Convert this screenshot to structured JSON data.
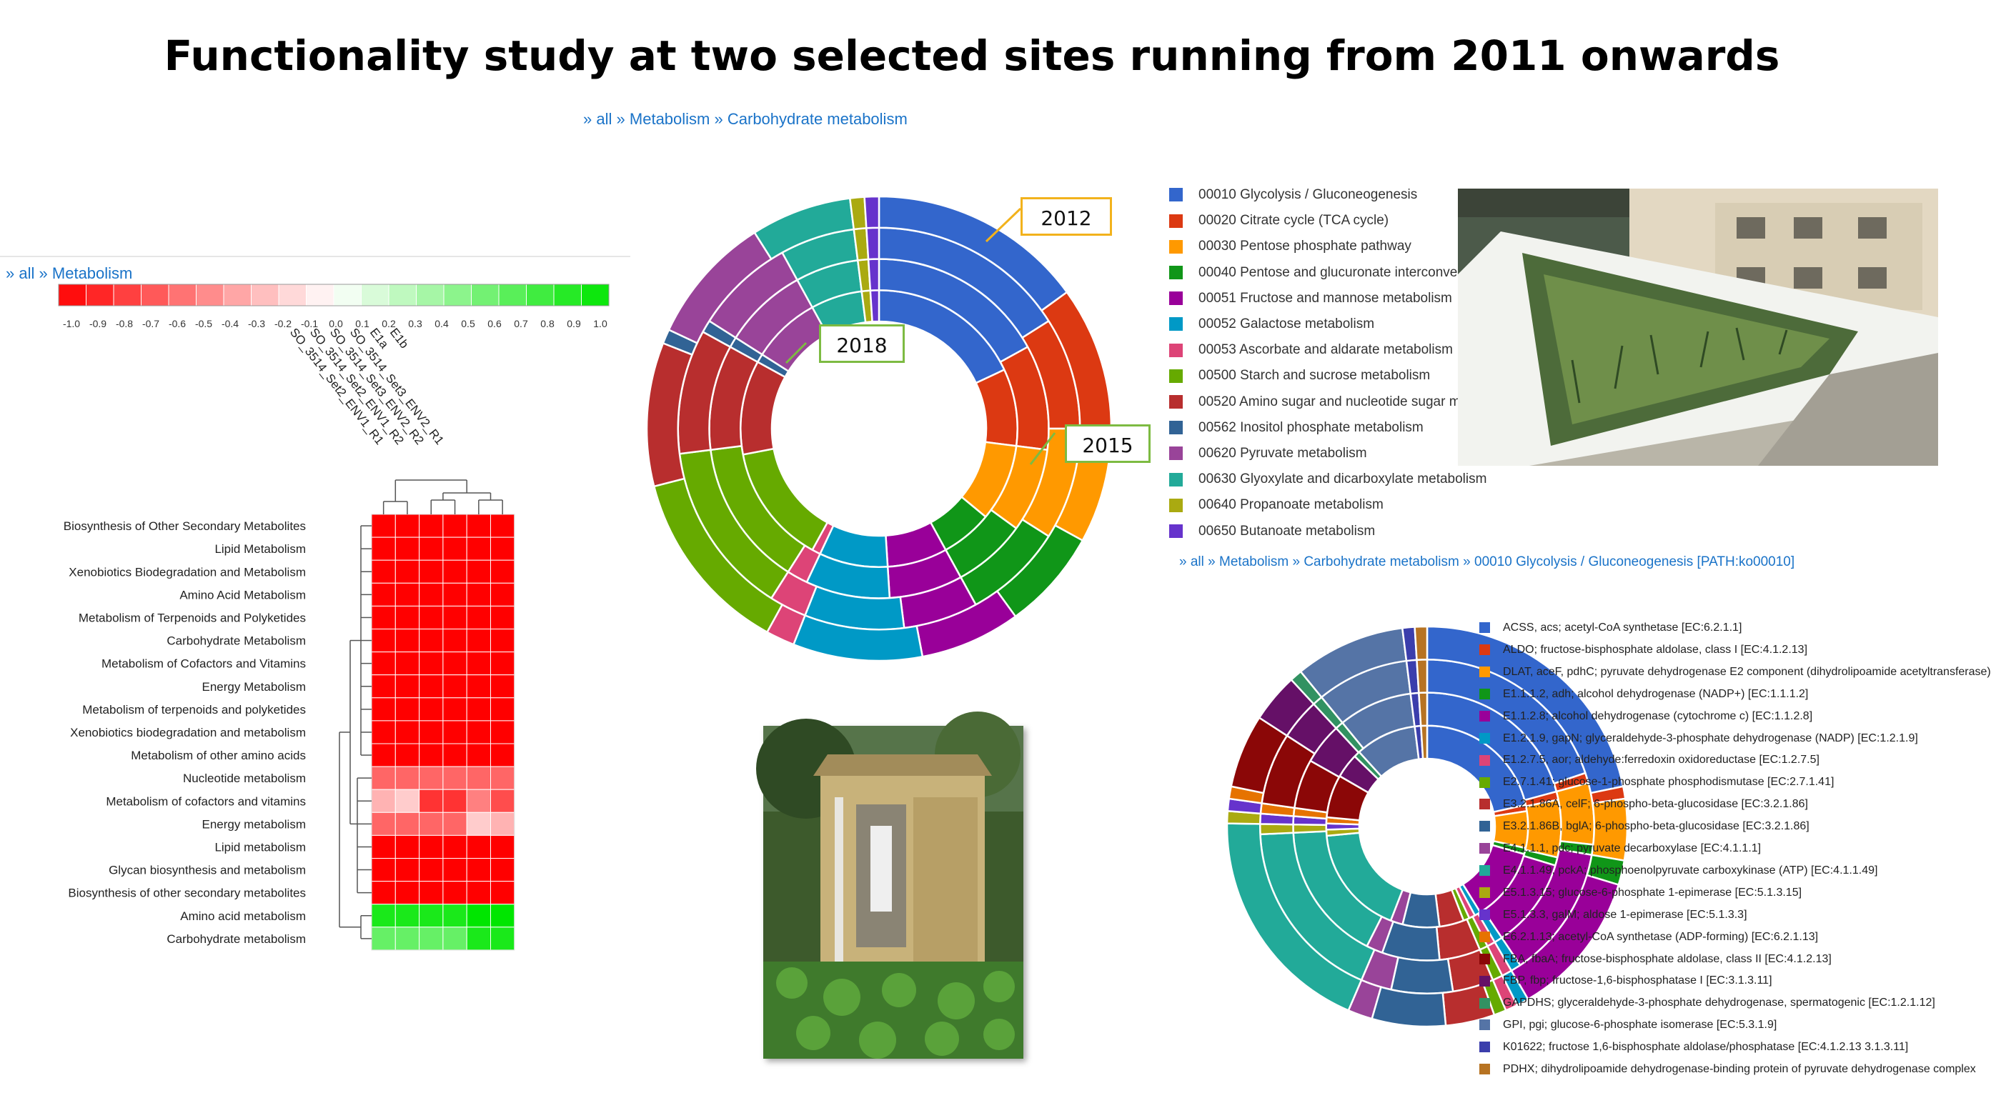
{
  "title": "Functionality study at two selected sites running from 2011 onwards",
  "breadcrumbs": {
    "top": [
      "all",
      "Metabolism",
      "Carbohydrate metabolism"
    ],
    "heatmap": [
      "all",
      "Metabolism"
    ],
    "bottom_right": [
      "all",
      "Metabolism",
      "Carbohydrate metabolism",
      "00010 Glycolysis / Gluconeogenesis [PATH:ko00010]"
    ],
    "separator": "»"
  },
  "callouts": {
    "a": "2012",
    "b": "2018",
    "c": "2015"
  },
  "chart_data": [
    {
      "type": "heatmap",
      "color_scale": {
        "min": -1.0,
        "max": 1.0,
        "ticks": [
          "-1.0",
          "-0.9",
          "-0.8",
          "-0.7",
          "-0.6",
          "-0.5",
          "-0.4",
          "-0.3",
          "-0.2",
          "-0.1",
          "0.0",
          "0.1",
          "0.2",
          "0.3",
          "0.4",
          "0.5",
          "0.6",
          "0.7",
          "0.8",
          "0.9",
          "1.0"
        ],
        "low_color": "#ff0000",
        "mid_color": "#ffffff",
        "high_color": "#00e600"
      },
      "columns": [
        "SO_3514_Set2_ENV1_R1",
        "SO_3514_Set2_ENV1_R2",
        "SO_3514_Set3_ENV2_R2",
        "SO_3514_Set3_ENV2_R1",
        "E1a",
        "E1b"
      ],
      "rows": [
        "Biosynthesis of Other Secondary Metabolites",
        "Lipid Metabolism",
        "Xenobiotics Biodegradation and Metabolism",
        "Amino Acid Metabolism",
        "Metabolism of Terpenoids and Polyketides",
        "Carbohydrate Metabolism",
        "Metabolism of Cofactors and Vitamins",
        "Energy Metabolism",
        "Metabolism of terpenoids and polyketides",
        "Xenobiotics biodegradation and metabolism",
        "Metabolism of other amino acids",
        "Nucleotide metabolism",
        "Metabolism of cofactors and vitamins",
        "Energy metabolism",
        "Lipid metabolism",
        "Glycan biosynthesis and metabolism",
        "Biosynthesis of other secondary metabolites",
        "Amino acid metabolism",
        "Carbohydrate metabolism"
      ],
      "values": [
        [
          -1,
          -1,
          -1,
          -1,
          -1,
          -1
        ],
        [
          -1,
          -1,
          -1,
          -1,
          -1,
          -1
        ],
        [
          -1,
          -1,
          -1,
          -1,
          -1,
          -1
        ],
        [
          -1,
          -1,
          -1,
          -1,
          -1,
          -1
        ],
        [
          -1,
          -1,
          -1,
          -1,
          -1,
          -1
        ],
        [
          -1,
          -1,
          -1,
          -1,
          -1,
          -1
        ],
        [
          -1,
          -1,
          -1,
          -1,
          -1,
          -1
        ],
        [
          -1,
          -1,
          -1,
          -1,
          -1,
          -1
        ],
        [
          -1,
          -1,
          -1,
          -1,
          -1,
          -1
        ],
        [
          -1,
          -1,
          -1,
          -1,
          -1,
          -1
        ],
        [
          -1,
          -1,
          -1,
          -1,
          -1,
          -1
        ],
        [
          -0.6,
          -0.6,
          -0.6,
          -0.6,
          -0.6,
          -0.6
        ],
        [
          -0.3,
          -0.2,
          -0.8,
          -0.8,
          -0.5,
          -0.7
        ],
        [
          -0.6,
          -0.6,
          -0.6,
          -0.6,
          -0.2,
          -0.3
        ],
        [
          -1,
          -1,
          -1,
          -1,
          -1,
          -1
        ],
        [
          -1,
          -1,
          -1,
          -1,
          -1,
          -1
        ],
        [
          -1,
          -1,
          -1,
          -1,
          -1,
          -1
        ],
        [
          0.9,
          0.9,
          0.9,
          0.9,
          1.0,
          1.0
        ],
        [
          0.6,
          0.6,
          0.6,
          0.6,
          0.9,
          0.9
        ]
      ]
    },
    {
      "type": "pie",
      "subtype": "multi-ring sunburst",
      "rings": 4,
      "legend": [
        {
          "label": "00010 Glycolysis / Gluconeogenesis",
          "color": "#3366cc"
        },
        {
          "label": "00020 Citrate cycle (TCA cycle)",
          "color": "#dc3912"
        },
        {
          "label": "00030 Pentose phosphate pathway",
          "color": "#ff9900"
        },
        {
          "label": "00040 Pentose and glucuronate interconversions",
          "color": "#109618"
        },
        {
          "label": "00051 Fructose and mannose metabolism",
          "color": "#990099"
        },
        {
          "label": "00052 Galactose metabolism",
          "color": "#0099c6"
        },
        {
          "label": "00053 Ascorbate and aldarate metabolism",
          "color": "#dd4477"
        },
        {
          "label": "00500 Starch and sucrose metabolism",
          "color": "#66aa00"
        },
        {
          "label": "00520 Amino sugar and nucleotide sugar metabolism",
          "color": "#b82e2e"
        },
        {
          "label": "00562 Inositol phosphate metabolism",
          "color": "#316395"
        },
        {
          "label": "00620 Pyruvate metabolism",
          "color": "#994499"
        },
        {
          "label": "00630 Glyoxylate and dicarboxylate metabolism",
          "color": "#22aa99"
        },
        {
          "label": "00640 Propanoate metabolism",
          "color": "#aaaa11"
        },
        {
          "label": "00650 Butanoate metabolism",
          "color": "#6633cc"
        }
      ],
      "ring_values": [
        [
          18,
          9,
          9,
          6,
          7,
          8,
          1,
          14,
          11,
          1,
          8,
          6,
          1,
          1
        ],
        [
          17,
          10,
          8,
          7,
          7,
          8,
          2,
          14,
          10,
          1,
          8,
          6,
          1,
          1
        ],
        [
          16,
          9,
          9,
          8,
          6,
          8,
          3,
          14,
          10,
          1,
          8,
          6,
          1,
          1
        ],
        [
          15,
          10,
          8,
          7,
          7,
          9,
          2,
          13,
          10,
          1,
          9,
          7,
          1,
          1
        ]
      ]
    },
    {
      "type": "pie",
      "subtype": "multi-ring sunburst",
      "rings": 4,
      "legend": [
        {
          "label": "ACSS, acs; acetyl-CoA synthetase [EC:6.2.1.1]",
          "color": "#3366cc"
        },
        {
          "label": "ALDO; fructose-bisphosphate aldolase, class I [EC:4.1.2.13]",
          "color": "#dc3912"
        },
        {
          "label": "DLAT, aceF, pdhC; pyruvate dehydrogenase E2 component (dihydrolipoamide acetyltransferase)",
          "color": "#ff9900"
        },
        {
          "label": "E1.1.1.2, adh; alcohol dehydrogenase (NADP+) [EC:1.1.1.2]",
          "color": "#109618"
        },
        {
          "label": "E1.1.2.8; alcohol dehydrogenase (cytochrome c) [EC:1.1.2.8]",
          "color": "#990099"
        },
        {
          "label": "E1.2.1.9, gapN; glyceraldehyde-3-phosphate dehydrogenase (NADP) [EC:1.2.1.9]",
          "color": "#0099c6"
        },
        {
          "label": "E1.2.7.5, aor; aldehyde:ferredoxin oxidoreductase [EC:1.2.7.5]",
          "color": "#dd4477"
        },
        {
          "label": "E2.7.1.41; glucose-1-phosphate phosphodismutase [EC:2.7.1.41]",
          "color": "#66aa00"
        },
        {
          "label": "E3.2.1.86A, celF; 6-phospho-beta-glucosidase [EC:3.2.1.86]",
          "color": "#b82e2e"
        },
        {
          "label": "E3.2.1.86B, bglA; 6-phospho-beta-glucosidase [EC:3.2.1.86]",
          "color": "#316395"
        },
        {
          "label": "E4.1.1.1, pdc; pyruvate decarboxylase [EC:4.1.1.1]",
          "color": "#994499"
        },
        {
          "label": "E4.1.1.49, pckA; phosphoenolpyruvate carboxykinase (ATP) [EC:4.1.1.49]",
          "color": "#22aa99"
        },
        {
          "label": "E5.1.3.15; glucose-6-phosphate 1-epimerase [EC:5.1.3.15]",
          "color": "#aaaa11"
        },
        {
          "label": "E5.1.3.3, galM; aldose 1-epimerase [EC:5.1.3.3]",
          "color": "#6633cc"
        },
        {
          "label": "E6.2.1.13; acetyl-CoA synthetase (ADP-forming) [EC:6.2.1.13]",
          "color": "#e67300"
        },
        {
          "label": "FBA, fbaA; fructose-bisphosphate aldolase, class II [EC:4.1.2.13]",
          "color": "#8b0707"
        },
        {
          "label": "FBP, fbp; fructose-1,6-bisphosphatase I [EC:3.1.3.11]",
          "color": "#651067"
        },
        {
          "label": "GAPDHS; glyceraldehyde-3-phosphate dehydrogenase, spermatogenic [EC:1.2.1.12]",
          "color": "#329262"
        },
        {
          "label": "GPI, pgi; glucose-6-phosphate isomerase [EC:5.3.1.9]",
          "color": "#5574a6"
        },
        {
          "label": "K01622; fructose 1,6-bisphosphate aldolase/phosphatase [EC:4.1.2.13 3.1.3.11]",
          "color": "#3b3eac"
        },
        {
          "label": "PDHX; dihydrolipoamide dehydrogenase-binding protein of pyruvate dehydrogenase complex",
          "color": "#b77322"
        }
      ],
      "ring_values": [
        [
          22,
          1,
          6,
          1,
          12,
          1,
          1,
          1,
          4,
          6,
          2,
          18,
          1,
          1,
          1,
          7,
          4,
          1,
          10,
          1,
          1
        ],
        [
          21,
          1,
          7,
          1,
          11,
          1,
          1,
          1,
          5,
          7,
          2,
          17,
          1,
          1,
          1,
          6,
          5,
          1,
          9,
          1,
          1
        ],
        [
          20,
          1,
          6,
          1,
          13,
          1,
          1,
          1,
          4,
          6,
          3,
          18,
          1,
          1,
          1,
          7,
          4,
          1,
          9,
          1,
          1
        ],
        [
          22,
          1,
          5,
          2,
          12,
          1,
          1,
          1,
          4,
          6,
          2,
          19,
          1,
          1,
          1,
          6,
          4,
          1,
          9,
          1,
          1
        ]
      ]
    }
  ]
}
